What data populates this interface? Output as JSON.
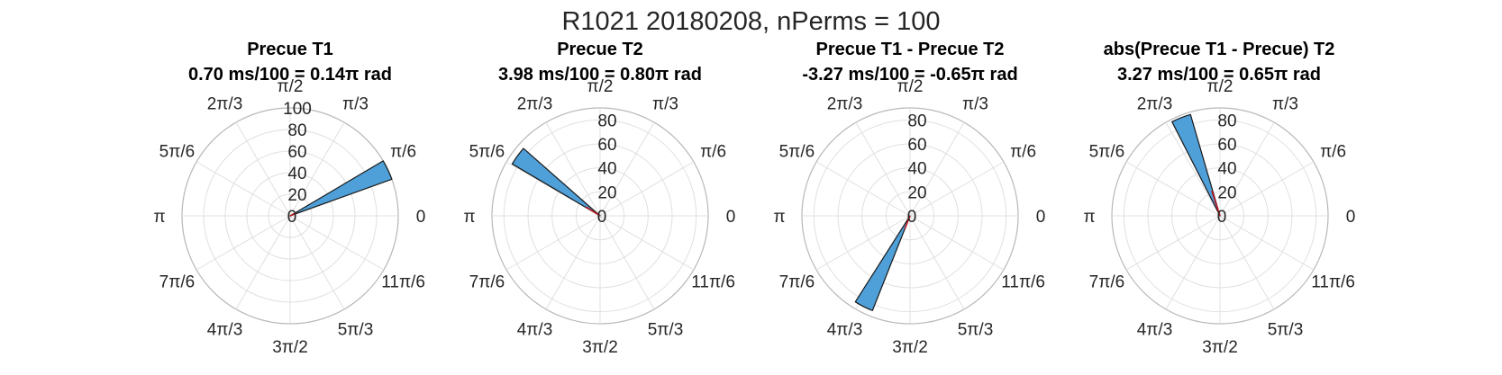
{
  "figure": {
    "suptitle": "R1021 20180208, nPerms = 100"
  },
  "colors": {
    "bar_fill": "#4f9fd8",
    "bar_edge": "#1a1a1a",
    "mean_line": "#c0141e",
    "grid": "#e0e0e0",
    "outer_ring": "#b8b8b8",
    "text": "#262626"
  },
  "chart_data": [
    {
      "type": "polar-histogram",
      "title": "Precue T1",
      "subtitle": "0.70 ms/100 = 0.14π rad",
      "angle_labels": [
        "0",
        "π/6",
        "π/3",
        "π/2",
        "2π/3",
        "5π/6",
        "π",
        "7π/6",
        "4π/3",
        "3π/2",
        "5π/3",
        "11π/6"
      ],
      "r_ticks": [
        0,
        20,
        40,
        60,
        80,
        100
      ],
      "rlim": [
        0,
        100
      ],
      "grid": true,
      "bars": [
        {
          "angle_pi": 0.14,
          "width_pi": 0.06,
          "count": 100
        }
      ],
      "mean_vector": {
        "angle_pi": 0.14,
        "length": 6
      }
    },
    {
      "type": "polar-histogram",
      "title": "Precue T2",
      "subtitle": "3.98 ms/100 = 0.80π rad",
      "angle_labels": [
        "0",
        "π/6",
        "π/3",
        "π/2",
        "2π/3",
        "5π/6",
        "π",
        "7π/6",
        "4π/3",
        "3π/2",
        "5π/3",
        "11π/6"
      ],
      "r_ticks": [
        0,
        20,
        40,
        60,
        80
      ],
      "rlim": [
        0,
        90
      ],
      "grid": true,
      "bars": [
        {
          "angle_pi": 0.8,
          "width_pi": 0.06,
          "count": 85
        }
      ],
      "mean_vector": {
        "angle_pi": 0.82,
        "length": 14
      }
    },
    {
      "type": "polar-histogram",
      "title": "Precue T1 - Precue T2",
      "subtitle": "-3.27 ms/100 = -0.65π rad",
      "angle_labels": [
        "0",
        "π/6",
        "π/3",
        "π/2",
        "2π/3",
        "5π/6",
        "π",
        "7π/6",
        "4π/3",
        "3π/2",
        "5π/3",
        "11π/6"
      ],
      "r_ticks": [
        0,
        20,
        40,
        60,
        80
      ],
      "rlim": [
        0,
        90
      ],
      "grid": true,
      "bars": [
        {
          "angle_pi": 1.35,
          "width_pi": 0.06,
          "count": 85
        }
      ],
      "mean_vector": {
        "angle_pi": 1.38,
        "length": 12
      }
    },
    {
      "type": "polar-histogram",
      "title": "abs(Precue T1 - Precue) T2",
      "subtitle": "3.27 ms/100 = 0.65π rad",
      "angle_labels": [
        "0",
        "π/6",
        "π/3",
        "π/2",
        "2π/3",
        "5π/6",
        "π",
        "7π/6",
        "4π/3",
        "3π/2",
        "5π/3",
        "11π/6"
      ],
      "r_ticks": [
        0,
        20,
        40,
        60,
        80
      ],
      "rlim": [
        0,
        90
      ],
      "grid": true,
      "bars": [
        {
          "angle_pi": 0.62,
          "width_pi": 0.06,
          "count": 88
        }
      ],
      "mean_vector": {
        "angle_pi": 0.6,
        "length": 22
      }
    }
  ]
}
